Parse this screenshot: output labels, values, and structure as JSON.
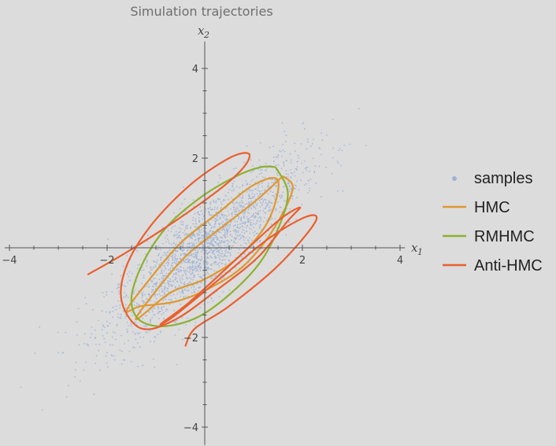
{
  "chart_data": {
    "type": "scatter",
    "title": "Simulation trajectories",
    "xlabel": "x",
    "xlabel_sub": "1",
    "ylabel": "x",
    "ylabel_sub": "2",
    "xlim": [
      -4.1,
      4.1
    ],
    "ylim": [
      -4.4,
      4.6
    ],
    "xticks": [
      -4,
      -2,
      2,
      4
    ],
    "xtick_labels": [
      "-4",
      "-2",
      "2",
      "4"
    ],
    "yticks": [
      -4,
      -2,
      2,
      4
    ],
    "ytick_labels": [
      "-4",
      "-2",
      "2",
      "4"
    ],
    "grid": false,
    "legend_position": "right",
    "samples": {
      "name": "samples",
      "color": "#9fb3d6",
      "distribution": "bivariate normal",
      "mean": [
        0,
        0
      ],
      "sd": [
        1,
        1
      ],
      "correlation": 0.85,
      "count": 2200
    },
    "series": [
      {
        "name": "HMC",
        "color": "#e0982f",
        "points": [
          [
            1.6,
            1.6
          ],
          [
            1.8,
            1.3
          ],
          [
            1.4,
            0.4
          ],
          [
            0.8,
            -0.4
          ],
          [
            0.1,
            -0.9
          ],
          [
            -0.6,
            -1.2
          ],
          [
            -1.3,
            -1.3
          ],
          [
            -1.6,
            -1.4
          ],
          [
            -1.2,
            -0.8
          ],
          [
            -0.5,
            0.1
          ],
          [
            0.3,
            0.8
          ],
          [
            1.0,
            1.4
          ],
          [
            1.5,
            1.5
          ],
          [
            1.3,
            0.6
          ],
          [
            0.7,
            -0.2
          ],
          [
            0.0,
            -0.7
          ],
          [
            -0.7,
            -1.0
          ],
          [
            -1.4,
            -1.6
          ],
          [
            -1.1,
            -1.1
          ],
          [
            -0.4,
            -0.2
          ],
          [
            0.4,
            0.5
          ],
          [
            1.1,
            1.1
          ],
          [
            1.6,
            1.6
          ]
        ]
      },
      {
        "name": "RMHMC",
        "color": "#8eb031",
        "points": [
          [
            1.45,
            1.8
          ],
          [
            1.7,
            1.25
          ],
          [
            1.55,
            0.55
          ],
          [
            1.15,
            -0.3
          ],
          [
            0.55,
            -1.0
          ],
          [
            -0.15,
            -1.55
          ],
          [
            -0.85,
            -1.75
          ],
          [
            -1.35,
            -1.6
          ],
          [
            -1.5,
            -1.1
          ],
          [
            -1.25,
            -0.3
          ],
          [
            -0.75,
            0.5
          ],
          [
            -0.05,
            1.15
          ],
          [
            0.65,
            1.6
          ],
          [
            1.15,
            1.8
          ],
          [
            1.45,
            1.8
          ]
        ]
      },
      {
        "name": "Anti-HMC",
        "color": "#ea5f2e",
        "points": [
          [
            -2.4,
            -0.6
          ],
          [
            -1.6,
            -0.1
          ],
          [
            -0.6,
            0.6
          ],
          [
            0.3,
            1.3
          ],
          [
            0.8,
            1.8
          ],
          [
            0.9,
            2.1
          ],
          [
            0.5,
            2.0
          ],
          [
            -0.3,
            1.4
          ],
          [
            -1.1,
            0.5
          ],
          [
            -1.6,
            -0.4
          ],
          [
            -1.7,
            -1.2
          ],
          [
            -1.3,
            -1.8
          ],
          [
            -0.6,
            -1.6
          ],
          [
            0.3,
            -0.9
          ],
          [
            1.1,
            -0.2
          ],
          [
            1.7,
            0.6
          ],
          [
            1.95,
            0.9
          ],
          [
            1.5,
            0.6
          ],
          [
            0.6,
            -0.3
          ],
          [
            -0.3,
            -1.2
          ],
          [
            -0.9,
            -1.7
          ],
          [
            -0.6,
            -1.5
          ],
          [
            0.3,
            -0.7
          ],
          [
            1.3,
            0.2
          ],
          [
            2.1,
            0.7
          ],
          [
            2.25,
            0.55
          ],
          [
            1.5,
            -0.4
          ],
          [
            0.5,
            -1.3
          ],
          [
            -0.2,
            -1.8
          ],
          [
            -0.4,
            -2.2
          ]
        ]
      }
    ]
  }
}
